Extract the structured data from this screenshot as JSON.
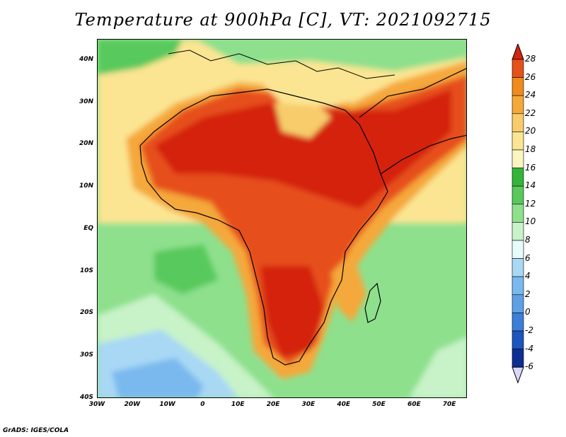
{
  "title": "Temperature at 900hPa [C], VT: 2021092715",
  "credit": "GrADS: IGES/COLA",
  "lat_labels": [
    {
      "text": "40N",
      "lat": 40
    },
    {
      "text": "30N",
      "lat": 30
    },
    {
      "text": "20N",
      "lat": 20
    },
    {
      "text": "10N",
      "lat": 10
    },
    {
      "text": "EQ",
      "lat": 0
    },
    {
      "text": "10S",
      "lat": -10
    },
    {
      "text": "20S",
      "lat": -20
    },
    {
      "text": "30S",
      "lat": -30
    },
    {
      "text": "40S",
      "lat": -40
    }
  ],
  "lon_labels": [
    {
      "text": "30W",
      "lon": -30
    },
    {
      "text": "20W",
      "lon": -20
    },
    {
      "text": "10W",
      "lon": -10
    },
    {
      "text": "0",
      "lon": 0
    },
    {
      "text": "10E",
      "lon": 10
    },
    {
      "text": "20E",
      "lon": 20
    },
    {
      "text": "30E",
      "lon": 30
    },
    {
      "text": "40E",
      "lon": 40
    },
    {
      "text": "50E",
      "lon": 50
    },
    {
      "text": "60E",
      "lon": 60
    },
    {
      "text": "70E",
      "lon": 70
    }
  ],
  "colorbar": {
    "levels": [
      "28",
      "26",
      "24",
      "22",
      "20",
      "18",
      "16",
      "14",
      "12",
      "10",
      "8",
      "6",
      "4",
      "2",
      "0",
      "-2",
      "-4",
      "-6"
    ],
    "colors": [
      "#d4240e",
      "#e6501a",
      "#f08a1c",
      "#f5a83a",
      "#f8cc6a",
      "#fbe592",
      "#fcf5c0",
      "#34b43a",
      "#59c95c",
      "#8ee08d",
      "#c8f3c8",
      "#e6fbfa",
      "#a8d8f4",
      "#79b9ee",
      "#5ea0e6",
      "#3d7fd8",
      "#1d55be",
      "#0e2e94",
      "#091b6a"
    ]
  }
}
